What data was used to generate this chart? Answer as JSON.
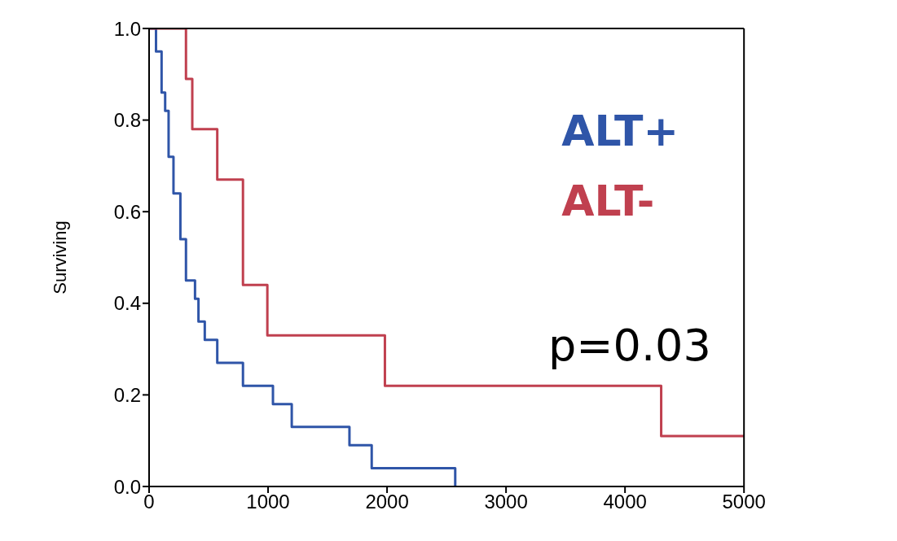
{
  "chart_data": {
    "type": "step",
    "ylabel": "Surviving",
    "annotations": [
      "p=0.03"
    ],
    "legend": "top right",
    "xlim": [
      0,
      5000
    ],
    "xticks": [
      0,
      1000,
      2000,
      3000,
      4000,
      5000
    ],
    "ylim": [
      0,
      1
    ],
    "yticks": [
      {
        "value": 0,
        "label": "0.0"
      },
      {
        "value": 0.2,
        "label": "0.2"
      },
      {
        "value": 0.4,
        "label": "0.4"
      },
      {
        "value": 0.6,
        "label": "0.6"
      },
      {
        "value": 0.8,
        "label": "0.8"
      },
      {
        "value": 1,
        "label": "1.0"
      }
    ],
    "marker": "none",
    "line_style": "solid",
    "series": [
      {
        "name": "ALT+",
        "color": "#2f55a8",
        "x": [
          0,
          58,
          105,
          135,
          164,
          205,
          263,
          310,
          386,
          415,
          468,
          573,
          789,
          1041,
          1199,
          1684,
          1871,
          2573
        ],
        "values": [
          1,
          0.95,
          0.86,
          0.82,
          0.72,
          0.64,
          0.54,
          0.45,
          0.41,
          0.36,
          0.32,
          0.27,
          0.22,
          0.18,
          0.13,
          0.09,
          0.04,
          0
        ]
      },
      {
        "name": "ALT-",
        "color": "#c0404f",
        "x": [
          0,
          310,
          363,
          573,
          789,
          994,
          1982,
          4304,
          5000
        ],
        "values": [
          1,
          0.89,
          0.78,
          0.67,
          0.44,
          0.33,
          0.22,
          0.11,
          0.11
        ]
      }
    ]
  }
}
